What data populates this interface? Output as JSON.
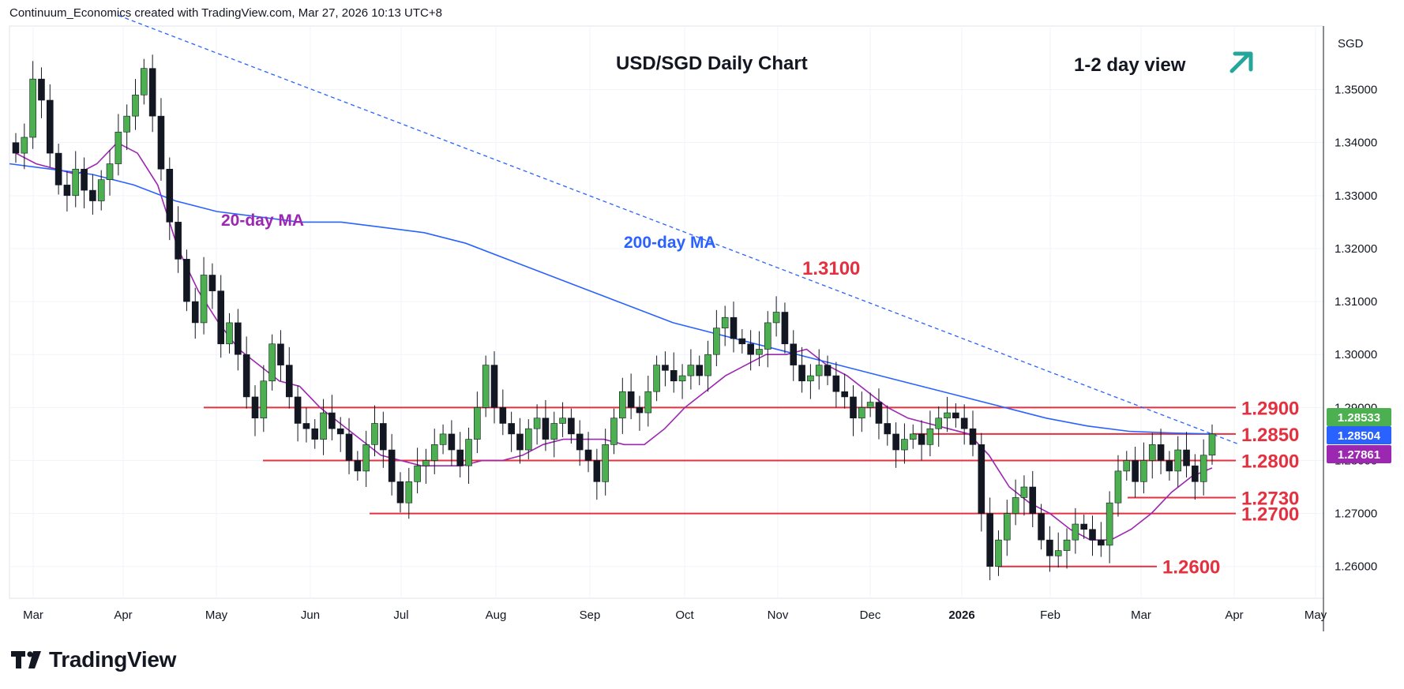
{
  "header": {
    "credit": "Continuum_Economics created with TradingView.com, Mar 27, 2026 10:13 UTC+8"
  },
  "footer": {
    "logo_text": "TradingView"
  },
  "colors": {
    "bull": "#4caf50",
    "bear": "#131722",
    "ma20": "#9c27b0",
    "ma200": "#2962ff",
    "levels": "#e4303f",
    "trendline": "#2962ff"
  },
  "chart_data": {
    "type": "candlestick",
    "title": "USD/SGD Daily Chart",
    "view_text": "1-2 day view",
    "view_icon": "arrow-up-right-icon",
    "currency": "SGD",
    "ylim": [
      1.254,
      1.362
    ],
    "y_ticks": [
      "1.35000",
      "1.34000",
      "1.33000",
      "1.32000",
      "1.31000",
      "1.30000",
      "1.29000",
      "1.28000",
      "1.27000",
      "1.26000"
    ],
    "x_ticks": [
      "Mar",
      "Apr",
      "May",
      "Jun",
      "Jul",
      "Aug",
      "Sep",
      "Oct",
      "Nov",
      "Dec",
      "2026",
      "Feb",
      "Mar",
      "Apr",
      "May"
    ],
    "price_badges": [
      {
        "value": "1.28533",
        "color": "#4caf50"
      },
      {
        "value": "1.28504",
        "color": "#2962ff"
      },
      {
        "value": "1.27861",
        "color": "#9c27b0"
      }
    ],
    "levels": [
      {
        "label": "1.2900",
        "value": 1.29
      },
      {
        "label": "1.2850",
        "value": 1.285
      },
      {
        "label": "1.2800",
        "value": 1.28
      },
      {
        "label": "1.2730",
        "value": 1.273
      },
      {
        "label": "1.2700",
        "value": 1.27
      },
      {
        "label": "1.2600",
        "value": 1.26
      }
    ],
    "annotations": [
      {
        "label": "1.3100"
      },
      {
        "label": "20-day MA"
      },
      {
        "label": "200-day MA"
      }
    ],
    "price_path": [
      1.338,
      1.341,
      1.352,
      1.348,
      1.338,
      1.332,
      1.33,
      1.335,
      1.331,
      1.329,
      1.333,
      1.336,
      1.342,
      1.345,
      1.349,
      1.354,
      1.345,
      1.335,
      1.325,
      1.318,
      1.31,
      1.306,
      1.315,
      1.312,
      1.302,
      1.306,
      1.3,
      1.292,
      1.288,
      1.295,
      1.302,
      1.298,
      1.292,
      1.287,
      1.286,
      1.284,
      1.289,
      1.286,
      1.285,
      1.28,
      1.278,
      1.283,
      1.287,
      1.282,
      1.276,
      1.272,
      1.276,
      1.279,
      1.28,
      1.283,
      1.285,
      1.282,
      1.279,
      1.284,
      1.29,
      1.298,
      1.29,
      1.287,
      1.285,
      1.282,
      1.286,
      1.288,
      1.284,
      1.287,
      1.288,
      1.285,
      1.282,
      1.28,
      1.276,
      1.283,
      1.288,
      1.293,
      1.29,
      1.289,
      1.293,
      1.298,
      1.297,
      1.295,
      1.296,
      1.298,
      1.296,
      1.3,
      1.305,
      1.307,
      1.303,
      1.302,
      1.3,
      1.301,
      1.306,
      1.308,
      1.302,
      1.298,
      1.295,
      1.296,
      1.298,
      1.296,
      1.293,
      1.292,
      1.288,
      1.29,
      1.291,
      1.287,
      1.285,
      1.282,
      1.284,
      1.285,
      1.283,
      1.286,
      1.288,
      1.289,
      1.288,
      1.286,
      1.283,
      1.27,
      1.26,
      1.265,
      1.27,
      1.273,
      1.275,
      1.27,
      1.265,
      1.262,
      1.263,
      1.265,
      1.268,
      1.267,
      1.265,
      1.264,
      1.272,
      1.278,
      1.28,
      1.276,
      1.28,
      1.283,
      1.28,
      1.278,
      1.282,
      1.279,
      1.276,
      1.281,
      1.285
    ],
    "ma20_path": [
      1.338,
      1.336,
      1.335,
      1.334,
      1.336,
      1.34,
      1.338,
      1.332,
      1.32,
      1.312,
      1.306,
      1.301,
      1.298,
      1.295,
      1.294,
      1.29,
      1.287,
      1.284,
      1.281,
      1.28,
      1.279,
      1.279,
      1.279,
      1.28,
      1.28,
      1.281,
      1.283,
      1.284,
      1.284,
      1.284,
      1.283,
      1.283,
      1.286,
      1.29,
      1.293,
      1.296,
      1.298,
      1.3,
      1.3,
      1.301,
      1.298,
      1.296,
      1.293,
      1.29,
      1.288,
      1.287,
      1.286,
      1.285,
      1.281,
      1.275,
      1.272,
      1.27,
      1.267,
      1.265,
      1.265,
      1.267,
      1.27,
      1.274,
      1.277,
      1.2786
    ],
    "ma200_path": [
      1.336,
      1.335,
      1.334,
      1.332,
      1.329,
      1.327,
      1.326,
      1.325,
      1.325,
      1.324,
      1.323,
      1.321,
      1.318,
      1.315,
      1.312,
      1.309,
      1.306,
      1.304,
      1.302,
      1.3,
      1.298,
      1.296,
      1.294,
      1.292,
      1.29,
      1.288,
      1.2865,
      1.2855,
      1.2852,
      1.285
    ],
    "trendline": {
      "from": 1.364,
      "to": 1.283
    },
    "grid": true,
    "legend": "none"
  }
}
